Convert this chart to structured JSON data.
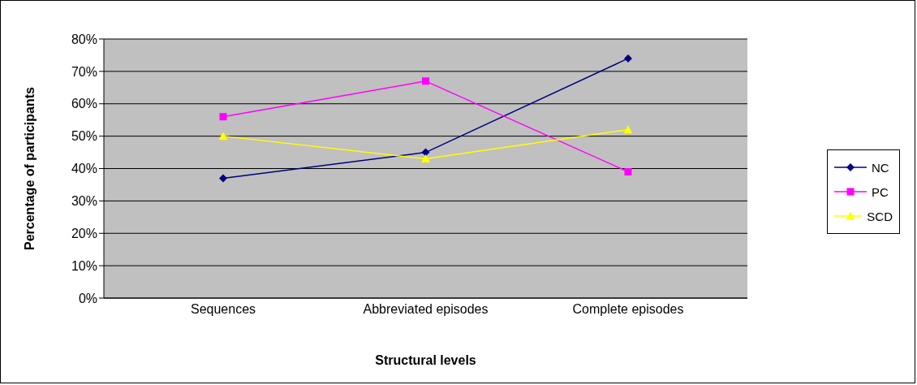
{
  "chart_data": {
    "type": "line",
    "xlabel": "Structural levels",
    "ylabel": "Percentage of participants",
    "categories": [
      "Sequences",
      "Abbreviated episodes",
      "Complete episodes"
    ],
    "series": [
      {
        "name": "NC",
        "color": "#000080",
        "marker": "diamond",
        "values": [
          37,
          45,
          74
        ]
      },
      {
        "name": "PC",
        "color": "#ff00ff",
        "marker": "square",
        "values": [
          56,
          67,
          39
        ]
      },
      {
        "name": "SCD",
        "color": "#ffff00",
        "marker": "triangle",
        "values": [
          50,
          43,
          52
        ]
      }
    ],
    "ylim": [
      0,
      80
    ],
    "yticks": [
      {
        "value": 0,
        "label": "0%"
      },
      {
        "value": 10,
        "label": "10%"
      },
      {
        "value": 20,
        "label": "20%"
      },
      {
        "value": 30,
        "label": "30%"
      },
      {
        "value": 40,
        "label": "40%"
      },
      {
        "value": 50,
        "label": "50%"
      },
      {
        "value": 60,
        "label": "60%"
      },
      {
        "value": 70,
        "label": "70%"
      },
      {
        "value": 80,
        "label": "80%"
      }
    ],
    "grid": "y",
    "legend": "right",
    "line_style": "solid"
  }
}
